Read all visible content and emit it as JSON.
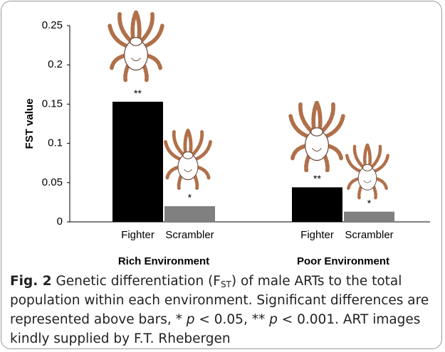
{
  "chart_data": {
    "type": "bar",
    "y_label": "FST value",
    "ylim": [
      0,
      0.25
    ],
    "yticks": [
      0,
      0.05,
      0.1,
      0.15,
      0.2,
      0.25
    ],
    "colors": [
      "#000000",
      "#808080"
    ],
    "groups": [
      {
        "name": "Rich Environment",
        "categories": [
          "Fighter",
          "Scrambler"
        ],
        "values": [
          0.153,
          0.02
        ],
        "annotations": [
          "**",
          "*"
        ]
      },
      {
        "name": "Poor Environment",
        "categories": [
          "Fighter",
          "Scrambler"
        ],
        "values": [
          0.044,
          0.013
        ],
        "annotations": [
          "**",
          "*"
        ]
      }
    ]
  },
  "caption": {
    "label": "Fig. 2",
    "parts": [
      " Genetic differentiation (F",
      "ST",
      ") of male ARTs to the total population within each environment. Significant differences are represented above bars, * ",
      "p",
      " < 0.05, ** ",
      "p",
      " < 0.001. ART images kindly supplied by F.T. Rhebergen"
    ]
  }
}
